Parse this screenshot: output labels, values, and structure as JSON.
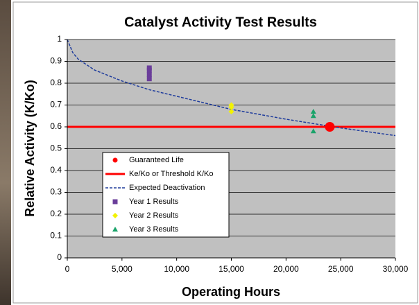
{
  "chart_data": {
    "type": "scatter",
    "title": "Catalyst Activity Test Results",
    "x_label": "Operating Hours",
    "y_label": "Relative Activity (K/Ko)",
    "xlim": [
      0,
      30000
    ],
    "ylim": [
      0,
      1
    ],
    "xticks": [
      0,
      {
        "value": 5000,
        "label": "5,000"
      },
      {
        "value": 10000,
        "label": "10,000"
      },
      {
        "value": 15000,
        "label": "15,000"
      },
      {
        "value": 20000,
        "label": "20,000"
      },
      {
        "value": 25000,
        "label": "25,000"
      },
      {
        "value": 30000,
        "label": "30,000"
      }
    ],
    "yticks": [
      0,
      0.1,
      0.2,
      0.3,
      0.4,
      0.5,
      0.6,
      0.7,
      0.8,
      0.9,
      1
    ],
    "grid": true,
    "legend": "lower left",
    "series": [
      {
        "name": "Guaranteed Life",
        "color": "#ff0000",
        "style": "circle",
        "x": [
          24000
        ],
        "values": [
          0.6
        ]
      },
      {
        "name": "Ke/Ko or Threshold K/Ko",
        "color": "#ff0000",
        "style": "line",
        "x": [
          0,
          30000
        ],
        "values": [
          0.6,
          0.6
        ]
      },
      {
        "name": "Expected Deactivation",
        "color": "#1f3c9c",
        "style": "dashed",
        "x": [
          0,
          500,
          1000,
          2500,
          5000,
          7500,
          10000,
          15000,
          20000,
          25000,
          30000
        ],
        "values": [
          1,
          0.94,
          0.91,
          0.86,
          0.81,
          0.77,
          0.74,
          0.68,
          0.635,
          0.595,
          0.56
        ]
      },
      {
        "name": "Year 1 Results",
        "color": "#6a3d9a",
        "style": "square",
        "x": [
          7500,
          7500,
          7500,
          7500
        ],
        "values": [
          0.82,
          0.84,
          0.86,
          0.87
        ]
      },
      {
        "name": "Year 2 Results",
        "color": "#f2f200",
        "style": "diamond",
        "x": [
          15000,
          15000,
          15000
        ],
        "values": [
          0.67,
          0.69,
          0.7
        ]
      },
      {
        "name": "Year 3 Results",
        "color": "#1aa36a",
        "style": "triangle",
        "x": [
          22500,
          22500,
          22500
        ],
        "values": [
          0.58,
          0.65,
          0.67
        ]
      }
    ]
  }
}
